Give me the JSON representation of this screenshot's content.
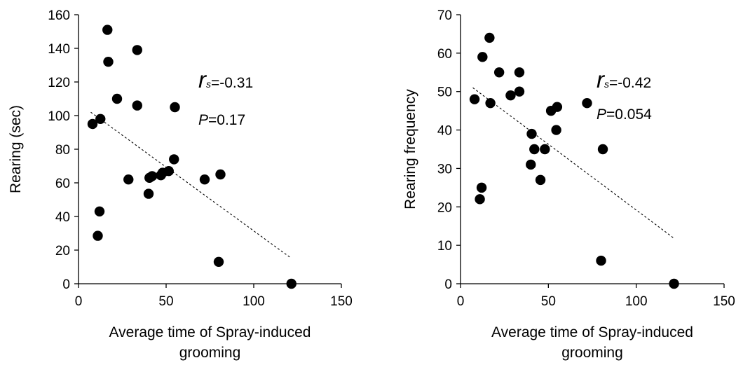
{
  "chart_data": [
    {
      "type": "scatter",
      "xlabel": "Average time of Spray-induced grooming",
      "ylabel": "Rearing (sec)",
      "xlim": [
        0,
        150
      ],
      "ylim": [
        0,
        160
      ],
      "x_ticks": [
        0,
        50,
        100,
        150
      ],
      "y_ticks": [
        0,
        20,
        40,
        60,
        80,
        100,
        120,
        140,
        160
      ],
      "grid": false,
      "points": [
        {
          "x": 8,
          "y": 95
        },
        {
          "x": 11,
          "y": 28.5
        },
        {
          "x": 12,
          "y": 43
        },
        {
          "x": 12.5,
          "y": 98
        },
        {
          "x": 16.5,
          "y": 151
        },
        {
          "x": 17,
          "y": 132
        },
        {
          "x": 22,
          "y": 110
        },
        {
          "x": 28.5,
          "y": 62
        },
        {
          "x": 33.5,
          "y": 139
        },
        {
          "x": 33.5,
          "y": 106
        },
        {
          "x": 40,
          "y": 53.5
        },
        {
          "x": 40.5,
          "y": 63
        },
        {
          "x": 42,
          "y": 64
        },
        {
          "x": 47,
          "y": 64.5
        },
        {
          "x": 48,
          "y": 66
        },
        {
          "x": 51.5,
          "y": 67
        },
        {
          "x": 54.5,
          "y": 74
        },
        {
          "x": 55,
          "y": 105
        },
        {
          "x": 72,
          "y": 62
        },
        {
          "x": 80,
          "y": 13
        },
        {
          "x": 81,
          "y": 65
        },
        {
          "x": 121.5,
          "y": 0
        }
      ],
      "trendline": {
        "x": [
          7,
          121
        ],
        "y": [
          102,
          15.5
        ]
      },
      "annotation": {
        "r_symbol": "r",
        "r_subscript": "s",
        "r_value": "=-0.31",
        "p_symbol": "P",
        "p_value": "=0.17"
      }
    },
    {
      "type": "scatter",
      "xlabel": "Average time of Spray-induced grooming",
      "ylabel": "Rearing frequency",
      "xlim": [
        0,
        150
      ],
      "ylim": [
        0,
        70
      ],
      "x_ticks": [
        0,
        50,
        100,
        150
      ],
      "y_ticks": [
        0,
        10,
        20,
        30,
        40,
        50,
        60,
        70
      ],
      "grid": false,
      "points": [
        {
          "x": 8,
          "y": 48
        },
        {
          "x": 11,
          "y": 22
        },
        {
          "x": 12,
          "y": 25
        },
        {
          "x": 12.5,
          "y": 59
        },
        {
          "x": 16.5,
          "y": 64
        },
        {
          "x": 17,
          "y": 47
        },
        {
          "x": 22,
          "y": 55
        },
        {
          "x": 28.5,
          "y": 49
        },
        {
          "x": 33.5,
          "y": 55
        },
        {
          "x": 33.5,
          "y": 50
        },
        {
          "x": 40,
          "y": 31
        },
        {
          "x": 40.5,
          "y": 39
        },
        {
          "x": 42,
          "y": 35
        },
        {
          "x": 45.5,
          "y": 27
        },
        {
          "x": 48,
          "y": 35
        },
        {
          "x": 51.5,
          "y": 45
        },
        {
          "x": 54.5,
          "y": 40
        },
        {
          "x": 55,
          "y": 46
        },
        {
          "x": 72,
          "y": 47
        },
        {
          "x": 80,
          "y": 6
        },
        {
          "x": 81,
          "y": 35
        },
        {
          "x": 121.5,
          "y": 0
        }
      ],
      "trendline": {
        "x": [
          7,
          121
        ],
        "y": [
          51,
          12
        ]
      },
      "annotation": {
        "r_symbol": "r",
        "r_subscript": "s",
        "r_value": "=-0.42",
        "p_symbol": "P",
        "p_value": "=0.054"
      }
    }
  ]
}
